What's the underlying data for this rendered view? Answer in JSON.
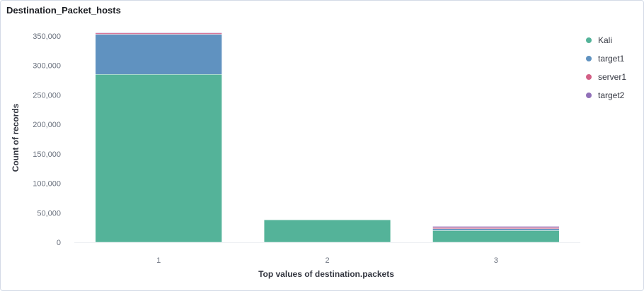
{
  "panel": {
    "title": "Destination_Packet_hosts"
  },
  "chart_data": {
    "type": "bar",
    "stacked": true,
    "categories": [
      "1",
      "2",
      "3"
    ],
    "series": [
      {
        "name": "Kali",
        "color": "#54b399",
        "values": [
          285000,
          38000,
          20000
        ]
      },
      {
        "name": "target1",
        "color": "#6092c0",
        "values": [
          68000,
          0,
          3000
        ]
      },
      {
        "name": "server1",
        "color": "#d36086",
        "values": [
          2000,
          0,
          2000
        ]
      },
      {
        "name": "target2",
        "color": "#9170b8",
        "values": [
          1000,
          0,
          2000
        ]
      }
    ],
    "xlabel": "Top values of destination.packets",
    "ylabel": "Count of records",
    "ylim": [
      0,
      350000
    ],
    "yticks": [
      0,
      50000,
      100000,
      150000,
      200000,
      250000,
      300000,
      350000
    ],
    "ytick_labels": [
      "0",
      "50,000",
      "100,000",
      "150,000",
      "200,000",
      "250,000",
      "300,000",
      "350,000"
    ],
    "grid": false,
    "legend_position": "right"
  }
}
